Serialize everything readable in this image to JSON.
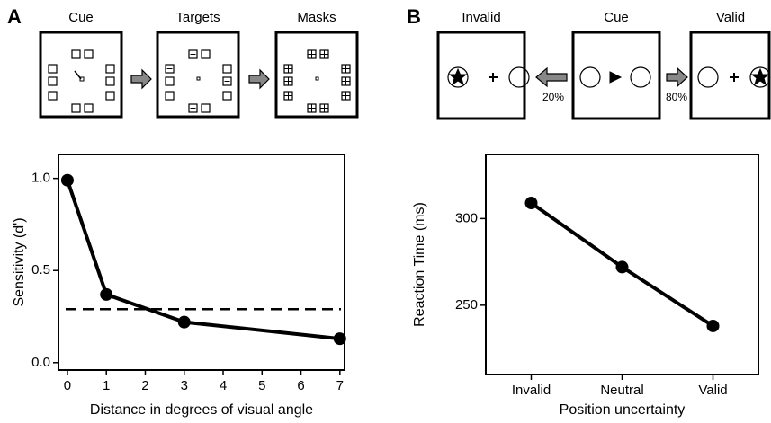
{
  "diagrams": [
    {
      "label": "A",
      "frames": [
        "Cue",
        "Targets",
        "Masks"
      ]
    },
    {
      "label": "B",
      "frames": [
        "Invalid",
        "Cue",
        "Valid"
      ],
      "arrow_labels": [
        "20%",
        "80%"
      ]
    }
  ],
  "chart_data": [
    {
      "type": "line",
      "x": [
        0,
        1,
        3,
        7
      ],
      "values": [
        0.99,
        0.37,
        0.22,
        0.13
      ],
      "color": "#000000",
      "xlim": [
        -0.23,
        7.12
      ],
      "xticks": [
        0,
        1,
        2,
        3,
        4,
        5,
        6,
        7
      ],
      "ylim": [
        -0.04,
        1.13
      ],
      "yticks": [
        {
          "value": 0,
          "label": "0.0"
        },
        {
          "value": 0.5,
          "label": "0.5"
        },
        {
          "value": 1,
          "label": "1.0"
        }
      ],
      "reference_line": 0.29,
      "x_label": "Distance in degrees of visual angle",
      "y_label": "Sensitivity (d')"
    },
    {
      "type": "line",
      "categories": [
        "Invalid",
        "Neutral",
        "Valid"
      ],
      "values": [
        309,
        272,
        238
      ],
      "color": "#000000",
      "ylim": [
        210,
        337
      ],
      "yticks": [
        250,
        300
      ],
      "x_label": "Position uncertainty",
      "y_label": "Reaction Time (ms)"
    }
  ]
}
